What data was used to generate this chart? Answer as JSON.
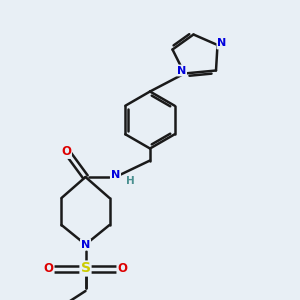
{
  "background_color": "#e8eff5",
  "bond_color": "#1a1a1a",
  "bond_width": 1.8,
  "atom_colors": {
    "C": "#1a1a1a",
    "N": "#0000dd",
    "O": "#dd0000",
    "S": "#cccc00",
    "H": "#4a9090"
  },
  "figsize": [
    3.0,
    3.0
  ],
  "dpi": 100
}
